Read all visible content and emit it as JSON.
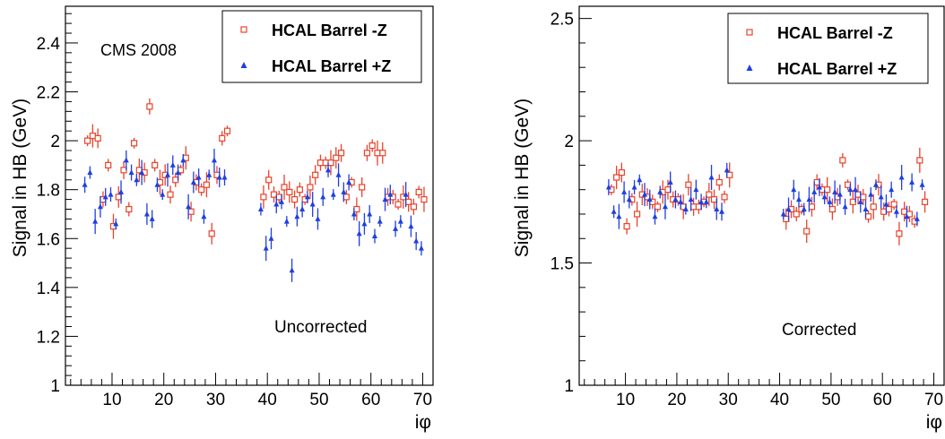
{
  "chart_data": [
    {
      "type": "scatter",
      "ylabel": "Signal in HB (GeV)",
      "xlabel": "iφ",
      "xlim": [
        1,
        72
      ],
      "ylim": [
        1.0,
        2.55
      ],
      "yticks": [
        1,
        1.2,
        1.4,
        1.6,
        1.8,
        2,
        2.2,
        2.4
      ],
      "ytick_labels": [
        "1",
        "1.2",
        "1.4",
        "1.6",
        "1.8",
        "2",
        "2.2",
        "2.4"
      ],
      "xticks": [
        10,
        20,
        30,
        40,
        50,
        60,
        70
      ],
      "xtick_labels": [
        "10",
        "20",
        "30",
        "40",
        "50",
        "60",
        "70"
      ],
      "annotations": [
        "CMS 2008",
        "Uncorrected"
      ],
      "legend_position": "top-right",
      "series": [
        {
          "name": "HCAL Barrel -Z",
          "marker": "open-square",
          "color": "#e8432a",
          "x": [
            5,
            6,
            7,
            8,
            9,
            10,
            11,
            12,
            13,
            14,
            15,
            16,
            17,
            18,
            19,
            20,
            21,
            22,
            23,
            24,
            25,
            26,
            27,
            28,
            29,
            30,
            31,
            32,
            39,
            40,
            41,
            42,
            43,
            44,
            45,
            46,
            47,
            48,
            49,
            50,
            51,
            52,
            53,
            54,
            55,
            56,
            57,
            58,
            59,
            60,
            61,
            62,
            63,
            64,
            65,
            66,
            67,
            68,
            69,
            70
          ],
          "y": [
            2.0,
            2.02,
            2.01,
            1.76,
            1.9,
            1.65,
            1.77,
            1.88,
            1.72,
            1.99,
            1.88,
            1.87,
            2.14,
            1.9,
            1.83,
            1.86,
            1.78,
            1.84,
            1.88,
            1.93,
            1.71,
            1.83,
            1.8,
            1.82,
            1.62,
            1.86,
            2.01,
            2.04,
            1.77,
            1.84,
            1.78,
            1.77,
            1.81,
            1.79,
            1.76,
            1.8,
            1.76,
            1.81,
            1.86,
            1.91,
            1.91,
            1.91,
            1.93,
            1.95,
            1.77,
            1.83,
            1.72,
            1.81,
            1.95,
            1.98,
            1.95,
            1.95,
            1.77,
            1.77,
            1.74,
            1.77,
            1.75,
            1.73,
            1.79,
            1.76
          ]
        },
        {
          "name": "HCAL Barrel +Z",
          "marker": "filled-triangle",
          "color": "#1f3fe0",
          "x": [
            5,
            6,
            7,
            8,
            9,
            10,
            11,
            12,
            13,
            14,
            15,
            16,
            17,
            18,
            19,
            20,
            21,
            22,
            23,
            24,
            25,
            26,
            27,
            28,
            29,
            30,
            31,
            32,
            39,
            40,
            41,
            42,
            43,
            44,
            45,
            46,
            47,
            48,
            49,
            50,
            51,
            52,
            53,
            54,
            55,
            56,
            57,
            58,
            59,
            60,
            61,
            62,
            63,
            64,
            65,
            66,
            67,
            68,
            69,
            70
          ],
          "y": [
            1.82,
            1.87,
            1.67,
            1.73,
            1.77,
            1.78,
            1.66,
            1.79,
            1.92,
            1.87,
            1.84,
            1.87,
            1.7,
            1.68,
            1.82,
            1.78,
            1.86,
            1.9,
            1.87,
            1.92,
            1.73,
            1.83,
            1.85,
            1.69,
            1.86,
            1.92,
            1.85,
            1.85,
            1.72,
            1.56,
            1.6,
            1.74,
            1.75,
            1.67,
            1.47,
            1.69,
            1.72,
            1.77,
            1.74,
            1.68,
            1.77,
            1.88,
            1.78,
            1.86,
            1.79,
            1.83,
            1.7,
            1.62,
            1.66,
            1.7,
            1.61,
            1.67,
            1.76,
            1.78,
            1.64,
            1.67,
            1.78,
            1.65,
            1.59,
            1.56
          ]
        }
      ]
    },
    {
      "type": "scatter",
      "ylabel": "Signal in HB (GeV)",
      "xlabel": "iφ",
      "xlim": [
        1,
        72
      ],
      "ylim": [
        1.0,
        2.55
      ],
      "yticks": [
        1,
        1.5,
        2,
        2.5
      ],
      "ytick_labels": [
        "1",
        "1.5",
        "2",
        "2.5"
      ],
      "xticks": [
        10,
        20,
        30,
        40,
        50,
        60,
        70
      ],
      "xtick_labels": [
        "10",
        "20",
        "30",
        "40",
        "50",
        "60",
        "70"
      ],
      "annotations": [
        "Corrected"
      ],
      "legend_position": "top-right",
      "series": [
        {
          "name": "HCAL Barrel -Z",
          "marker": "open-square",
          "color": "#e8432a",
          "x": [
            7,
            8,
            9,
            10,
            11,
            12,
            13,
            14,
            15,
            16,
            17,
            18,
            19,
            20,
            21,
            22,
            23,
            24,
            25,
            26,
            27,
            28,
            29,
            30,
            41,
            42,
            43,
            44,
            45,
            46,
            47,
            48,
            49,
            50,
            51,
            52,
            53,
            54,
            55,
            56,
            57,
            58,
            59,
            60,
            61,
            62,
            63,
            64,
            65,
            66,
            67,
            68
          ],
          "y": [
            1.8,
            1.85,
            1.87,
            1.65,
            1.76,
            1.7,
            1.78,
            1.77,
            1.75,
            1.73,
            1.79,
            1.8,
            1.76,
            1.76,
            1.73,
            1.82,
            1.73,
            1.73,
            1.75,
            1.78,
            1.76,
            1.83,
            1.77,
            1.86,
            1.68,
            1.72,
            1.7,
            1.72,
            1.63,
            1.73,
            1.83,
            1.8,
            1.8,
            1.72,
            1.77,
            1.92,
            1.82,
            1.75,
            1.78,
            1.77,
            1.69,
            1.73,
            1.82,
            1.71,
            1.72,
            1.74,
            1.62,
            1.71,
            1.7,
            1.67,
            1.92,
            1.75
          ]
        },
        {
          "name": "HCAL Barrel +Z",
          "marker": "filled-triangle",
          "color": "#1f3fe0",
          "x": [
            7,
            8,
            9,
            10,
            11,
            12,
            13,
            14,
            15,
            16,
            17,
            18,
            19,
            20,
            21,
            22,
            23,
            24,
            25,
            26,
            27,
            28,
            29,
            30,
            41,
            42,
            43,
            44,
            45,
            46,
            47,
            48,
            49,
            50,
            51,
            52,
            53,
            54,
            55,
            56,
            57,
            58,
            59,
            60,
            61,
            62,
            63,
            64,
            65,
            66,
            67,
            68
          ],
          "y": [
            1.81,
            1.71,
            1.69,
            1.79,
            1.76,
            1.81,
            1.84,
            1.78,
            1.76,
            1.69,
            1.79,
            1.73,
            1.83,
            1.76,
            1.75,
            1.72,
            1.76,
            1.8,
            1.75,
            1.75,
            1.85,
            1.72,
            1.71,
            1.88,
            1.7,
            1.72,
            1.8,
            1.76,
            1.72,
            1.76,
            1.79,
            1.81,
            1.77,
            1.75,
            1.79,
            1.78,
            1.73,
            1.8,
            1.8,
            1.75,
            1.72,
            1.78,
            1.82,
            1.77,
            1.74,
            1.8,
            1.71,
            1.85,
            1.69,
            1.83,
            1.68,
            1.82
          ]
        }
      ]
    }
  ]
}
